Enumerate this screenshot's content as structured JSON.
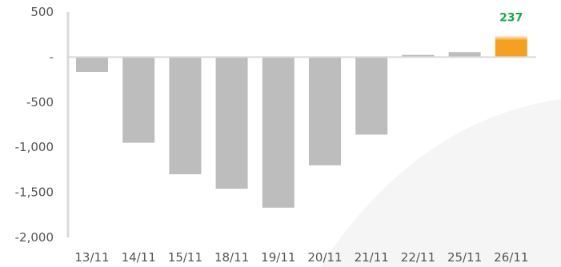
{
  "chart_data": {
    "type": "bar",
    "categories": [
      "13/11",
      "14/11",
      "15/11",
      "18/11",
      "19/11",
      "20/11",
      "21/11",
      "22/11",
      "25/11",
      "26/11"
    ],
    "values": [
      -165,
      -950,
      -1300,
      -1460,
      -1670,
      -1200,
      -860,
      25,
      55,
      237
    ],
    "highlight_index": 9,
    "data_labels": [
      {
        "index": 9,
        "text": "237"
      }
    ],
    "y_ticks": [
      {
        "value": 500,
        "label": "500"
      },
      {
        "value": 0,
        "label": "-"
      },
      {
        "value": -500,
        "label": "-500"
      },
      {
        "value": -1000,
        "label": "-1,000"
      },
      {
        "value": -1500,
        "label": "-1,500"
      },
      {
        "value": -2000,
        "label": "-2,000"
      }
    ],
    "ylim": [
      -2000,
      500
    ],
    "title": "",
    "xlabel": "",
    "ylabel": "",
    "grid": false,
    "legend": "none",
    "colors": {
      "bar": "#bdbdbd",
      "highlight_bar": "#f5a020",
      "highlight_bar_top": "#fff3e0",
      "data_label": "#1aa64a",
      "axis": "#d9d9d9",
      "tick_text": "#555555",
      "background_shape": "#f5f5f5"
    }
  }
}
